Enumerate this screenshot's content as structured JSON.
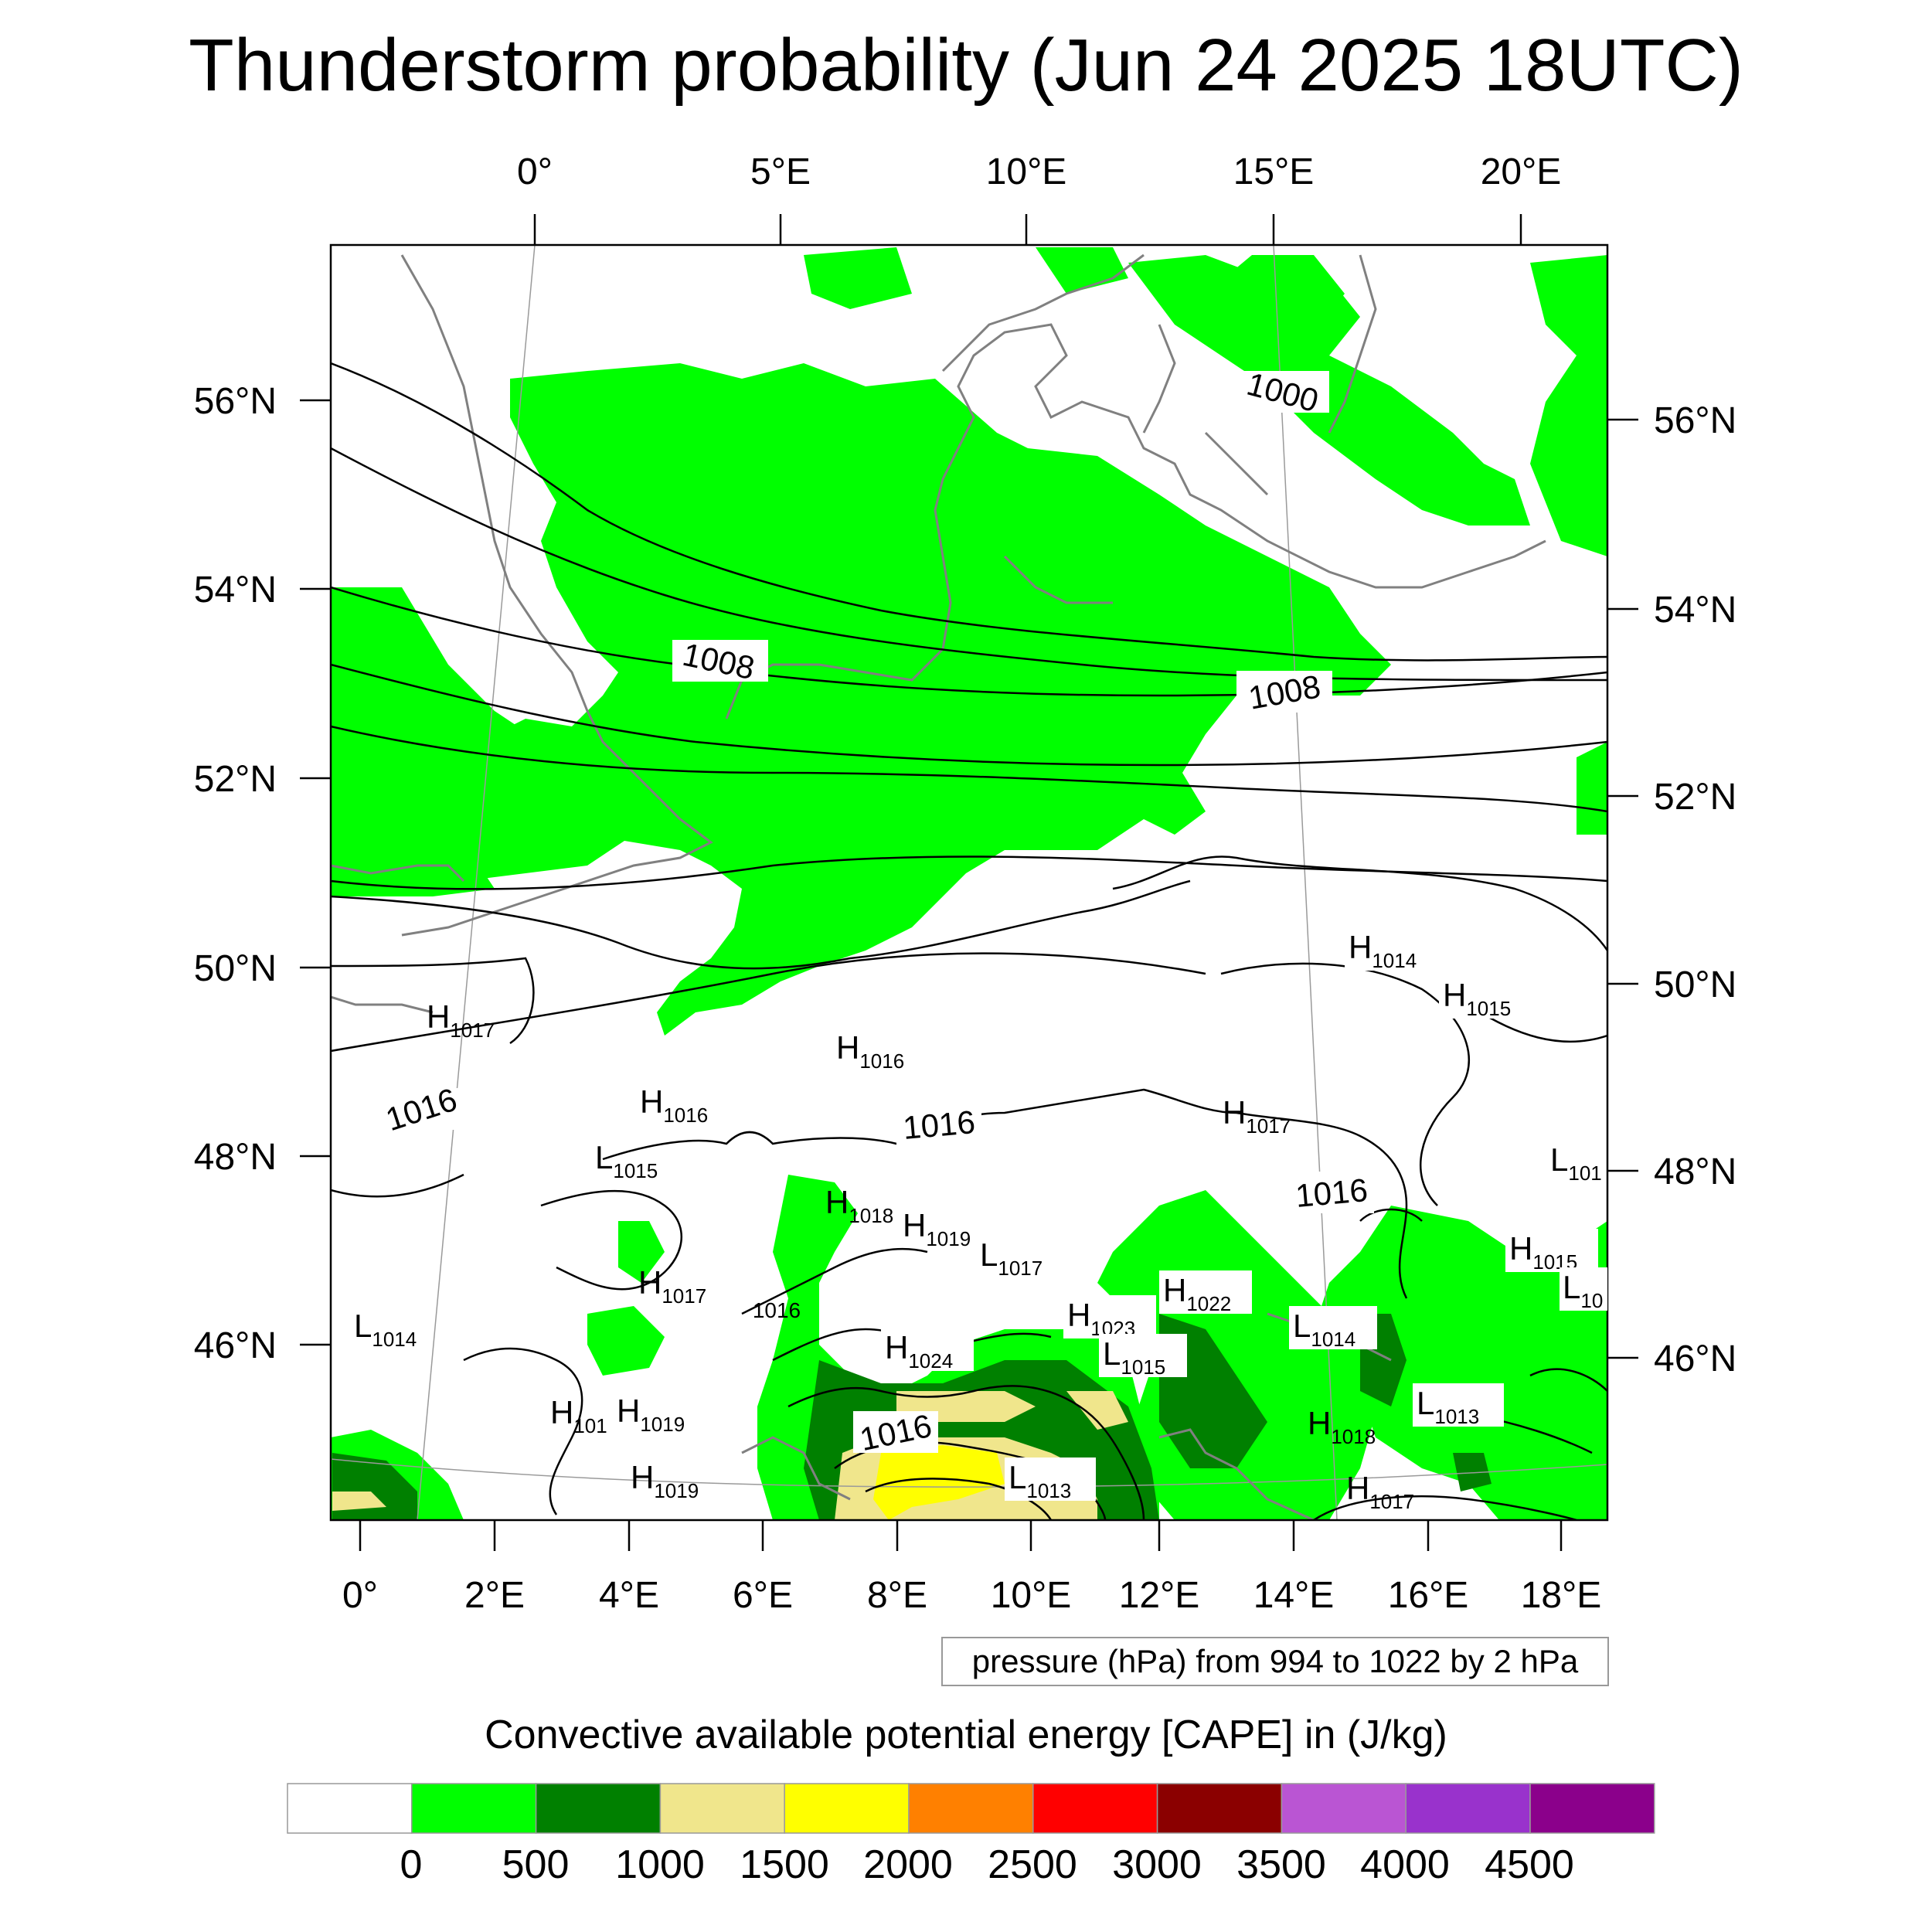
{
  "title": "Thunderstorm probability (Jun 24 2025 18UTC)",
  "top_lon_labels": [
    "0°",
    "5°E",
    "10°E",
    "15°E",
    "20°E"
  ],
  "bottom_lon_labels": [
    "0°",
    "2°E",
    "4°E",
    "6°E",
    "8°E",
    "10°E",
    "12°E",
    "14°E",
    "16°E",
    "18°E"
  ],
  "left_lat_labels": [
    "56°N",
    "54°N",
    "52°N",
    "50°N",
    "48°N",
    "46°N"
  ],
  "right_lat_labels": [
    "56°N",
    "54°N",
    "52°N",
    "50°N",
    "48°N",
    "46°N"
  ],
  "isobar_labels": [
    "1000",
    "1008",
    "1008",
    "1016",
    "1016",
    "1016",
    "1016",
    "1016"
  ],
  "pressure_centers": [
    {
      "type": "H",
      "value": "1014"
    },
    {
      "type": "H",
      "value": "1015"
    },
    {
      "type": "H",
      "value": "1017"
    },
    {
      "type": "H",
      "value": "1016"
    },
    {
      "type": "H",
      "value": "1016"
    },
    {
      "type": "L",
      "value": "1015"
    },
    {
      "type": "H",
      "value": "1017"
    },
    {
      "type": "L",
      "value": "101"
    },
    {
      "type": "H",
      "value": "1018"
    },
    {
      "type": "H",
      "value": "1019"
    },
    {
      "type": "L",
      "value": "1017"
    },
    {
      "type": "H",
      "value": "1017"
    },
    {
      "type": "H",
      "value": "1023"
    },
    {
      "type": "H",
      "value": "1022"
    },
    {
      "type": "H",
      "value": "1015"
    },
    {
      "type": "L",
      "value": "10"
    },
    {
      "type": "L",
      "value": "1014"
    },
    {
      "type": "L",
      "value": "1014"
    },
    {
      "type": "H",
      "value": "1024"
    },
    {
      "type": "L",
      "value": "1015"
    },
    {
      "type": "H",
      "value": "101"
    },
    {
      "type": "H",
      "value": "1019"
    },
    {
      "type": "L",
      "value": "1013"
    },
    {
      "type": "H",
      "value": "1018"
    },
    {
      "type": "H",
      "value": "1019"
    },
    {
      "type": "L",
      "value": "1013"
    },
    {
      "type": "H",
      "value": "1017"
    }
  ],
  "info_box_text": "pressure (hPa) from 994 to 1022 by 2 hPa",
  "colorbar": {
    "title": "Convective available potential energy [CAPE] in (J/kg)",
    "colors": [
      "#ffffff",
      "#00ff00",
      "#008000",
      "#f0e68c",
      "#ffff00",
      "#ff8000",
      "#ff0000",
      "#8b0000",
      "#ba55d3",
      "#9932cc",
      "#8b008b"
    ],
    "tick_labels": [
      "0",
      "500",
      "1000",
      "1500",
      "2000",
      "2500",
      "3000",
      "3500",
      "4000",
      "4500"
    ]
  }
}
